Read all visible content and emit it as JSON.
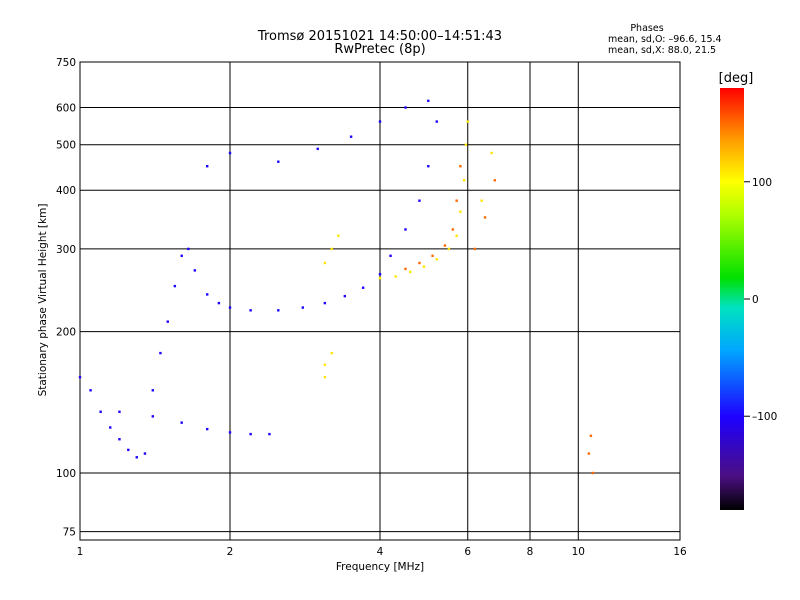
{
  "chart_data": {
    "type": "scatter",
    "title": "Tromsø 20151021 14:50:00–14:51:43",
    "subtitle": "RwPretec (8p)",
    "xlabel": "Frequency [MHz]",
    "ylabel": "Stationary phase Virtual Height [km]",
    "x_scale": "log",
    "y_scale": "log",
    "xlim": [
      1,
      16
    ],
    "ylim": [
      72,
      750
    ],
    "x_ticks": [
      1,
      2,
      4,
      6,
      8,
      10,
      16
    ],
    "x_tick_labels": [
      "1",
      "2",
      "4",
      "6",
      "8",
      "10",
      "16"
    ],
    "y_ticks": [
      75,
      100,
      200,
      300,
      400,
      500,
      600,
      750
    ],
    "y_tick_labels": [
      "75",
      "100",
      "200",
      "300",
      "400",
      "500",
      "600",
      "750"
    ],
    "grid": true,
    "phase_stats": {
      "heading": "Phases",
      "line_o": "mean, sd,O: –96.6, 15.4",
      "line_x": "mean, sd,X:  88.0, 21.5"
    },
    "colorbar": {
      "label": "[deg]",
      "ticks": [
        100,
        0,
        -100
      ],
      "tick_labels": [
        "100",
        "0",
        "–100"
      ],
      "range": [
        -180,
        180
      ],
      "palette": "rainbow (black-purple-blue-cyan-green-yellow-orange-red)"
    },
    "series": [
      {
        "phase_deg": -100,
        "points": [
          [
            1.0,
            160
          ],
          [
            1.05,
            150
          ],
          [
            1.1,
            135
          ],
          [
            1.15,
            125
          ],
          [
            1.2,
            118
          ],
          [
            1.25,
            112
          ],
          [
            1.3,
            108
          ],
          [
            1.35,
            110
          ],
          [
            1.4,
            150
          ],
          [
            1.45,
            180
          ],
          [
            1.5,
            210
          ],
          [
            1.55,
            250
          ],
          [
            1.6,
            290
          ],
          [
            1.65,
            300
          ],
          [
            1.7,
            270
          ],
          [
            1.8,
            240
          ],
          [
            1.9,
            230
          ],
          [
            2.0,
            225
          ],
          [
            2.2,
            222
          ],
          [
            2.5,
            222
          ],
          [
            2.8,
            225
          ],
          [
            3.1,
            230
          ],
          [
            3.4,
            238
          ],
          [
            3.7,
            248
          ],
          [
            4.0,
            265
          ],
          [
            4.2,
            290
          ],
          [
            4.5,
            330
          ],
          [
            4.8,
            380
          ],
          [
            5.0,
            450
          ],
          [
            5.2,
            560
          ],
          [
            1.8,
            450
          ],
          [
            2.0,
            480
          ],
          [
            2.5,
            460
          ],
          [
            3.0,
            490
          ],
          [
            3.5,
            520
          ],
          [
            4.0,
            560
          ],
          [
            4.5,
            600
          ],
          [
            5.0,
            620
          ],
          [
            1.2,
            135
          ],
          [
            1.4,
            132
          ],
          [
            1.6,
            128
          ],
          [
            1.8,
            124
          ],
          [
            2.0,
            122
          ],
          [
            2.2,
            121
          ],
          [
            2.4,
            121
          ]
        ]
      },
      {
        "phase_deg": 110,
        "points": [
          [
            4.0,
            260
          ],
          [
            4.3,
            262
          ],
          [
            4.6,
            268
          ],
          [
            4.9,
            275
          ],
          [
            5.2,
            285
          ],
          [
            5.5,
            300
          ],
          [
            5.7,
            320
          ],
          [
            5.8,
            360
          ],
          [
            5.9,
            420
          ],
          [
            5.95,
            500
          ],
          [
            6.0,
            560
          ],
          [
            6.4,
            380
          ],
          [
            6.7,
            480
          ],
          [
            3.1,
            280
          ],
          [
            3.2,
            300
          ],
          [
            3.3,
            320
          ],
          [
            3.1,
            170
          ],
          [
            3.2,
            180
          ],
          [
            3.1,
            160
          ]
        ]
      },
      {
        "phase_deg": 150,
        "points": [
          [
            4.5,
            272
          ],
          [
            4.8,
            280
          ],
          [
            5.1,
            290
          ],
          [
            5.4,
            305
          ],
          [
            5.6,
            330
          ],
          [
            5.7,
            380
          ],
          [
            5.8,
            450
          ],
          [
            6.2,
            300
          ],
          [
            6.5,
            350
          ],
          [
            6.8,
            420
          ],
          [
            10.5,
            110
          ],
          [
            10.6,
            120
          ],
          [
            10.7,
            100
          ]
        ]
      }
    ]
  }
}
